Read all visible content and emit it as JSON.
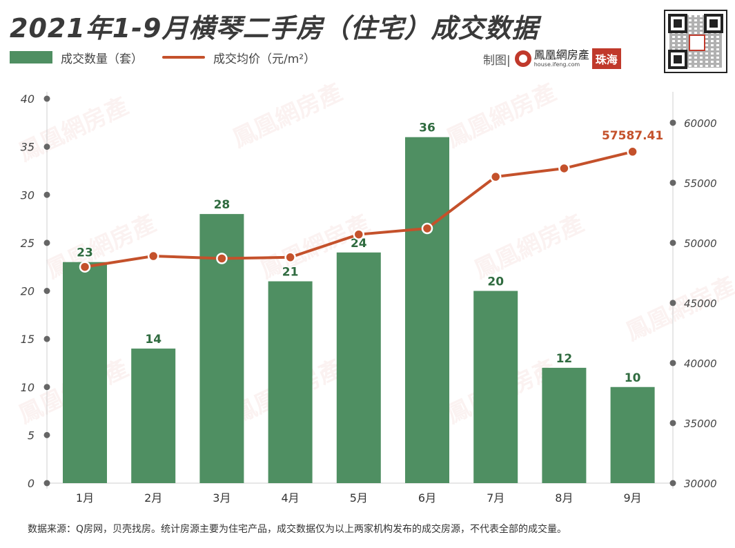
{
  "title": "2021年1-9月横琴二手房（住宅）成交数据",
  "legend": {
    "bar_label": "成交数量（套）",
    "line_label": "成交均价（元/m²）"
  },
  "credit": {
    "label": "制图|",
    "logo_cn": "鳳凰網房產",
    "logo_url": "house.ifeng.com",
    "logo_city": "珠海"
  },
  "watermark": "鳳凰網房產",
  "footer": "数据来源：Q房网，贝壳找房。统计房源主要为住宅产品，成交数据仅为以上两家机构发布的成交房源，不代表全部的成交量。",
  "colors": {
    "bar": "#4f8f62",
    "line": "#c4512b",
    "bar_label": "#2f6b3f",
    "axis_dot": "#666666"
  },
  "chart_data": {
    "type": "bar+line",
    "categories": [
      "1月",
      "2月",
      "3月",
      "4月",
      "5月",
      "6月",
      "7月",
      "8月",
      "9月"
    ],
    "series": [
      {
        "name": "成交数量（套）",
        "type": "bar",
        "axis": "left",
        "values": [
          23,
          14,
          28,
          21,
          24,
          36,
          20,
          12,
          10
        ],
        "data_labels": [
          "23",
          "14",
          "28",
          "21",
          "24",
          "36",
          "20",
          "12",
          "10"
        ]
      },
      {
        "name": "成交均价（元/m²）",
        "type": "line",
        "axis": "right",
        "values": [
          48000,
          48900,
          48700,
          48800,
          50700,
          51200,
          55500,
          56200,
          57587.41
        ],
        "data_labels": [
          "",
          "",
          "",
          "",
          "",
          "",
          "",
          "",
          "57587.41"
        ]
      }
    ],
    "y_left": {
      "min": 0,
      "max": 40,
      "ticks": [
        "0",
        "5",
        "10",
        "15",
        "20",
        "25",
        "30",
        "35",
        "40"
      ]
    },
    "y_right": {
      "min": 30000,
      "max": 62000,
      "ticks": [
        "30000",
        "35000",
        "40000",
        "45000",
        "50000",
        "55000",
        "60000"
      ]
    }
  }
}
